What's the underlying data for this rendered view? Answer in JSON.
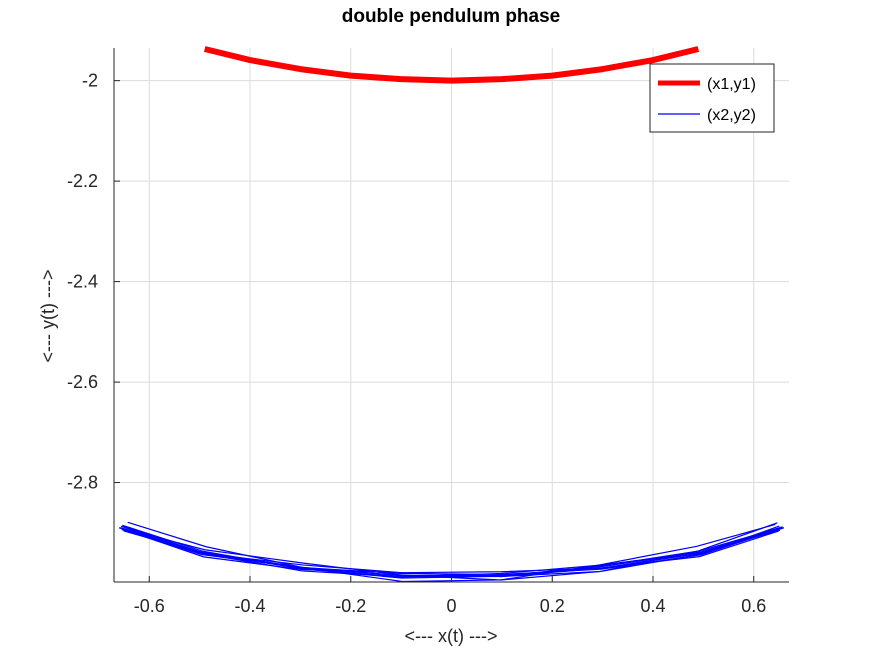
{
  "chart_data": {
    "type": "line",
    "title": "double pendulum phase",
    "xlabel": "<--- x(t) --->",
    "ylabel": "<--- y(t) --->",
    "xlim": [
      -0.67,
      0.67
    ],
    "ylim": [
      -2.998,
      -1.935
    ],
    "xticks": [
      -0.6,
      -0.4,
      -0.2,
      0,
      0.2,
      0.4,
      0.6
    ],
    "xtick_labels": [
      "-0.6",
      "-0.4",
      "-0.2",
      "0",
      "0.2",
      "0.4",
      "0.6"
    ],
    "yticks": [
      -2,
      -2.2,
      -2.4,
      -2.6,
      -2.8
    ],
    "ytick_labels": [
      "-2",
      "-2.2",
      "-2.4",
      "-2.6",
      "-2.8"
    ],
    "grid": true,
    "legend_position": "top-right",
    "series": [
      {
        "name": "(x1,y1)",
        "color": "#ff0000",
        "style": "thick",
        "x": [
          -0.49,
          -0.4,
          -0.3,
          -0.2,
          -0.1,
          0,
          0.1,
          0.2,
          0.3,
          0.4,
          0.49
        ],
        "y": [
          -1.937,
          -1.959,
          -1.977,
          -1.99,
          -1.997,
          -2.0,
          -1.997,
          -1.99,
          -1.977,
          -1.959,
          -1.937
        ]
      },
      {
        "name": "(x2,y2)",
        "color": "#0000ff",
        "style": "thin",
        "x": [
          -0.66,
          -0.5,
          -0.3,
          -0.1,
          0.1,
          0.3,
          0.5,
          0.66
        ],
        "y": [
          -2.89,
          -2.94,
          -2.97,
          -2.985,
          -2.985,
          -2.97,
          -2.94,
          -2.89
        ]
      }
    ]
  }
}
